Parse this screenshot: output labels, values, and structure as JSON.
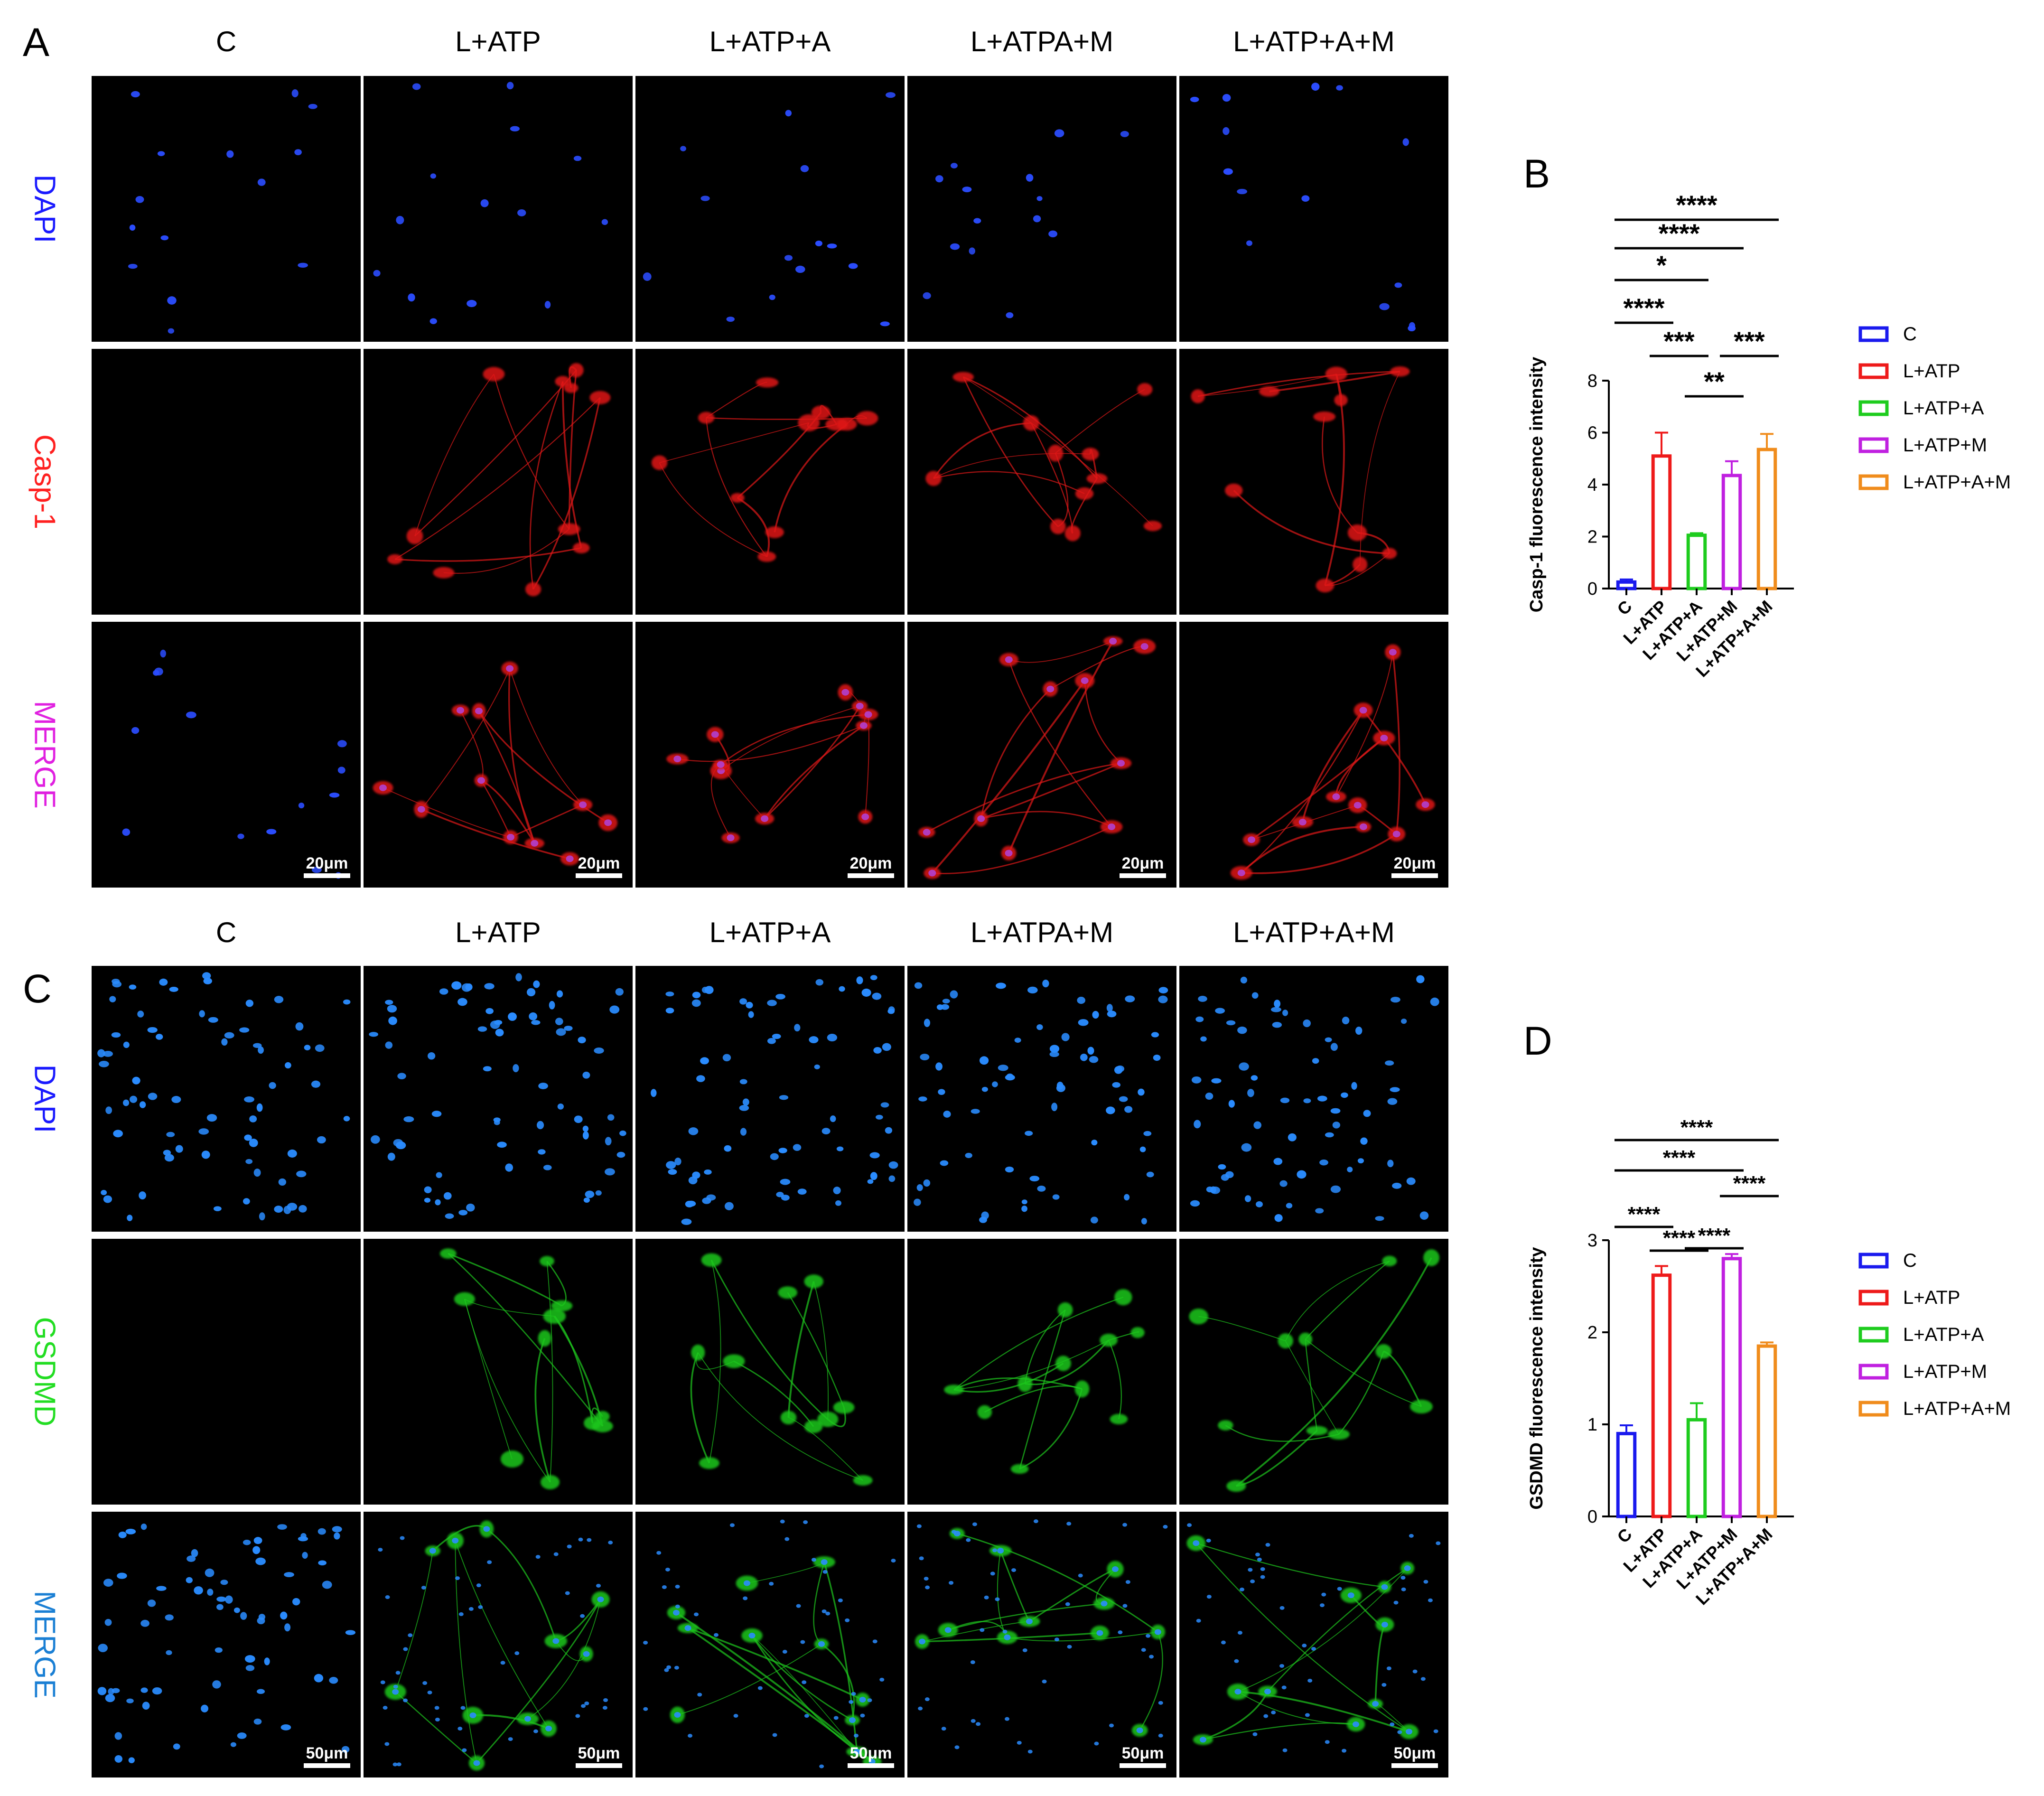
{
  "panels": {
    "A": {
      "letter": "A",
      "columns": [
        "C",
        "L+ATP",
        "L+ATP+A",
        "L+ATPA+M",
        "L+ATP+A+M"
      ],
      "rows": [
        {
          "label": "DAPI",
          "color": "#1a1aff"
        },
        {
          "label": "Casp-1",
          "color": "#ff2020"
        },
        {
          "label": "MERGE",
          "color": "#e020e0"
        }
      ],
      "scale_bar": "20μm"
    },
    "C": {
      "letter": "C",
      "columns": [
        "C",
        "L+ATP",
        "L+ATP+A",
        "L+ATPA+M",
        "L+ATP+A+M"
      ],
      "rows": [
        {
          "label": "DAPI",
          "color": "#1a1aff"
        },
        {
          "label": "GSDMD",
          "color": "#22dd22"
        },
        {
          "label": "MERGE",
          "color": "#1a7fd4"
        }
      ],
      "scale_bar": "50μm"
    }
  },
  "chart_data": [
    {
      "panel": "B",
      "type": "bar",
      "ylabel": "Casp-1 fluorescence intensity",
      "ylim": [
        0,
        8
      ],
      "yticks": [
        "0",
        "2",
        "4",
        "6",
        "8"
      ],
      "categories": [
        "C",
        "L+ATP",
        "L+ATP+A",
        "L+ATP+M",
        "L+ATP+A+M"
      ],
      "values": [
        0.25,
        5.1,
        2.05,
        4.35,
        5.35
      ],
      "errors": [
        0.1,
        0.9,
        0.08,
        0.55,
        0.6
      ],
      "colors": [
        "#1a1aee",
        "#ee1a1a",
        "#1ecc1e",
        "#c020e0",
        "#f08c1c"
      ],
      "legend": [
        "C",
        "L+ATP",
        "L+ATP+A",
        "L+ATP+M",
        "L+ATP+A+M"
      ],
      "significance": [
        {
          "from": 0,
          "to": 4,
          "label": "****"
        },
        {
          "from": 0,
          "to": 3,
          "label": "****"
        },
        {
          "from": 0,
          "to": 2,
          "label": "*"
        },
        {
          "from": 0,
          "to": 1,
          "label": "****"
        },
        {
          "from": 1,
          "to": 2,
          "label": "***"
        },
        {
          "from": 3,
          "to": 4,
          "label": "***"
        },
        {
          "from": 2,
          "to": 3,
          "label": "**"
        }
      ]
    },
    {
      "panel": "D",
      "type": "bar",
      "ylabel": "GSDMD fluorescence intensity",
      "ylim": [
        0,
        3
      ],
      "yticks": [
        "0",
        "1",
        "2",
        "3"
      ],
      "categories": [
        "C",
        "L+ATP",
        "L+ATP+A",
        "L+ATP+M",
        "L+ATP+A+M"
      ],
      "values": [
        0.9,
        2.62,
        1.05,
        2.8,
        1.85
      ],
      "errors": [
        0.09,
        0.1,
        0.18,
        0.05,
        0.04
      ],
      "colors": [
        "#1a1aee",
        "#ee1a1a",
        "#1ecc1e",
        "#c020e0",
        "#f08c1c"
      ],
      "legend": [
        "C",
        "L+ATP",
        "L+ATP+A",
        "L+ATP+M",
        "L+ATP+A+M"
      ],
      "significance": [
        {
          "from": 0,
          "to": 4,
          "label": "****"
        },
        {
          "from": 0,
          "to": 3,
          "label": "****"
        },
        {
          "from": 3,
          "to": 4,
          "label": "****"
        },
        {
          "from": 0,
          "to": 1,
          "label": "****"
        },
        {
          "from": 2,
          "to": 3,
          "label": "****"
        },
        {
          "from": 1,
          "to": 2,
          "label": "****"
        }
      ]
    }
  ]
}
